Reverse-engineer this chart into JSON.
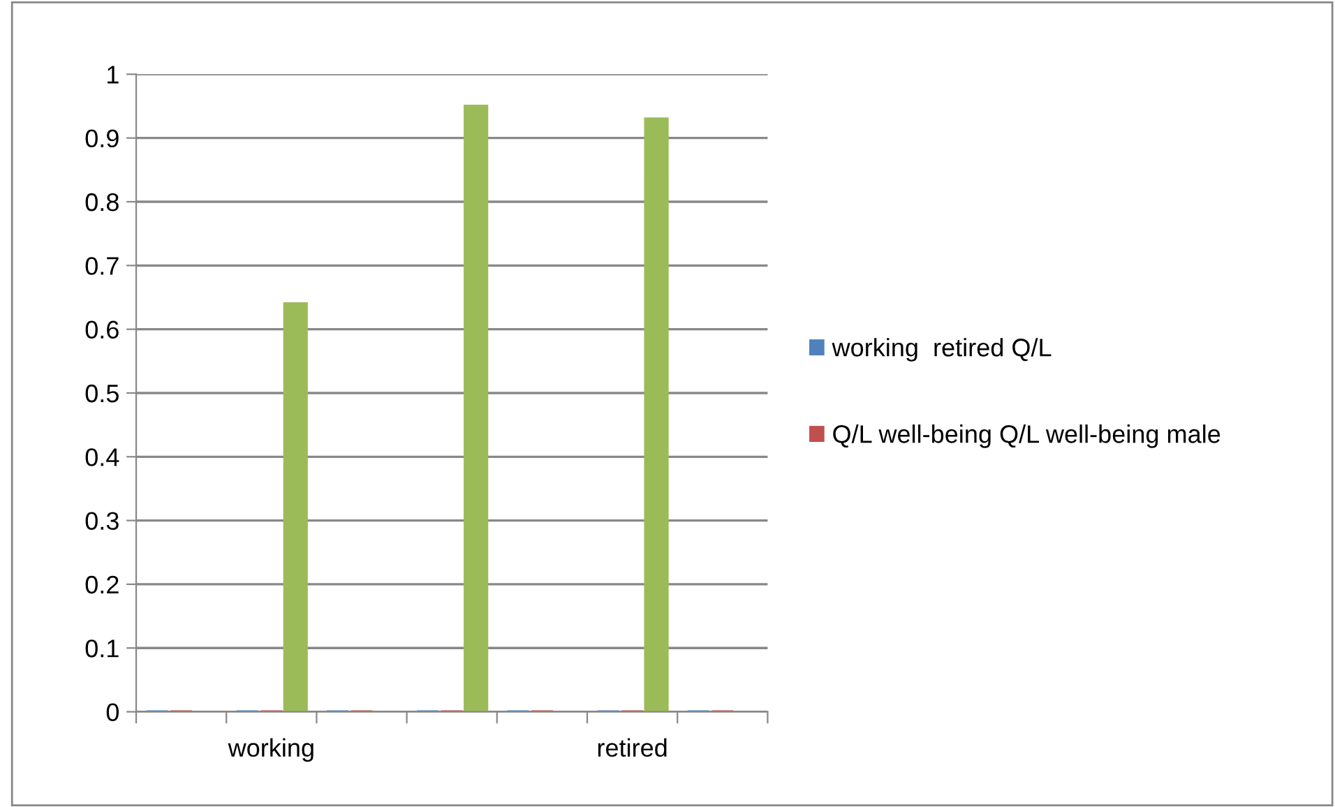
{
  "chart_data": {
    "type": "bar",
    "categories": [
      null,
      "working",
      null,
      null,
      null,
      "retired",
      null
    ],
    "series": [
      {
        "name": "working  retired Q/L",
        "color": "#4f81bd",
        "values": [
          0,
          0,
          0,
          0,
          0,
          0,
          0
        ]
      },
      {
        "name": "Q/L well-being Q/L well-being male",
        "color": "#c0504d",
        "values": [
          0,
          0,
          0,
          0,
          0,
          0,
          0
        ]
      },
      {
        "color": "#9bbb59",
        "values": [
          null,
          0.64,
          null,
          0.95,
          null,
          0.93,
          null
        ]
      }
    ],
    "ylim": [
      0,
      1
    ],
    "yticks": [
      0,
      0.1,
      0.2,
      0.3,
      0.4,
      0.5,
      0.6,
      0.7,
      0.8,
      0.9,
      1
    ],
    "grid": "y",
    "legend": "right"
  }
}
